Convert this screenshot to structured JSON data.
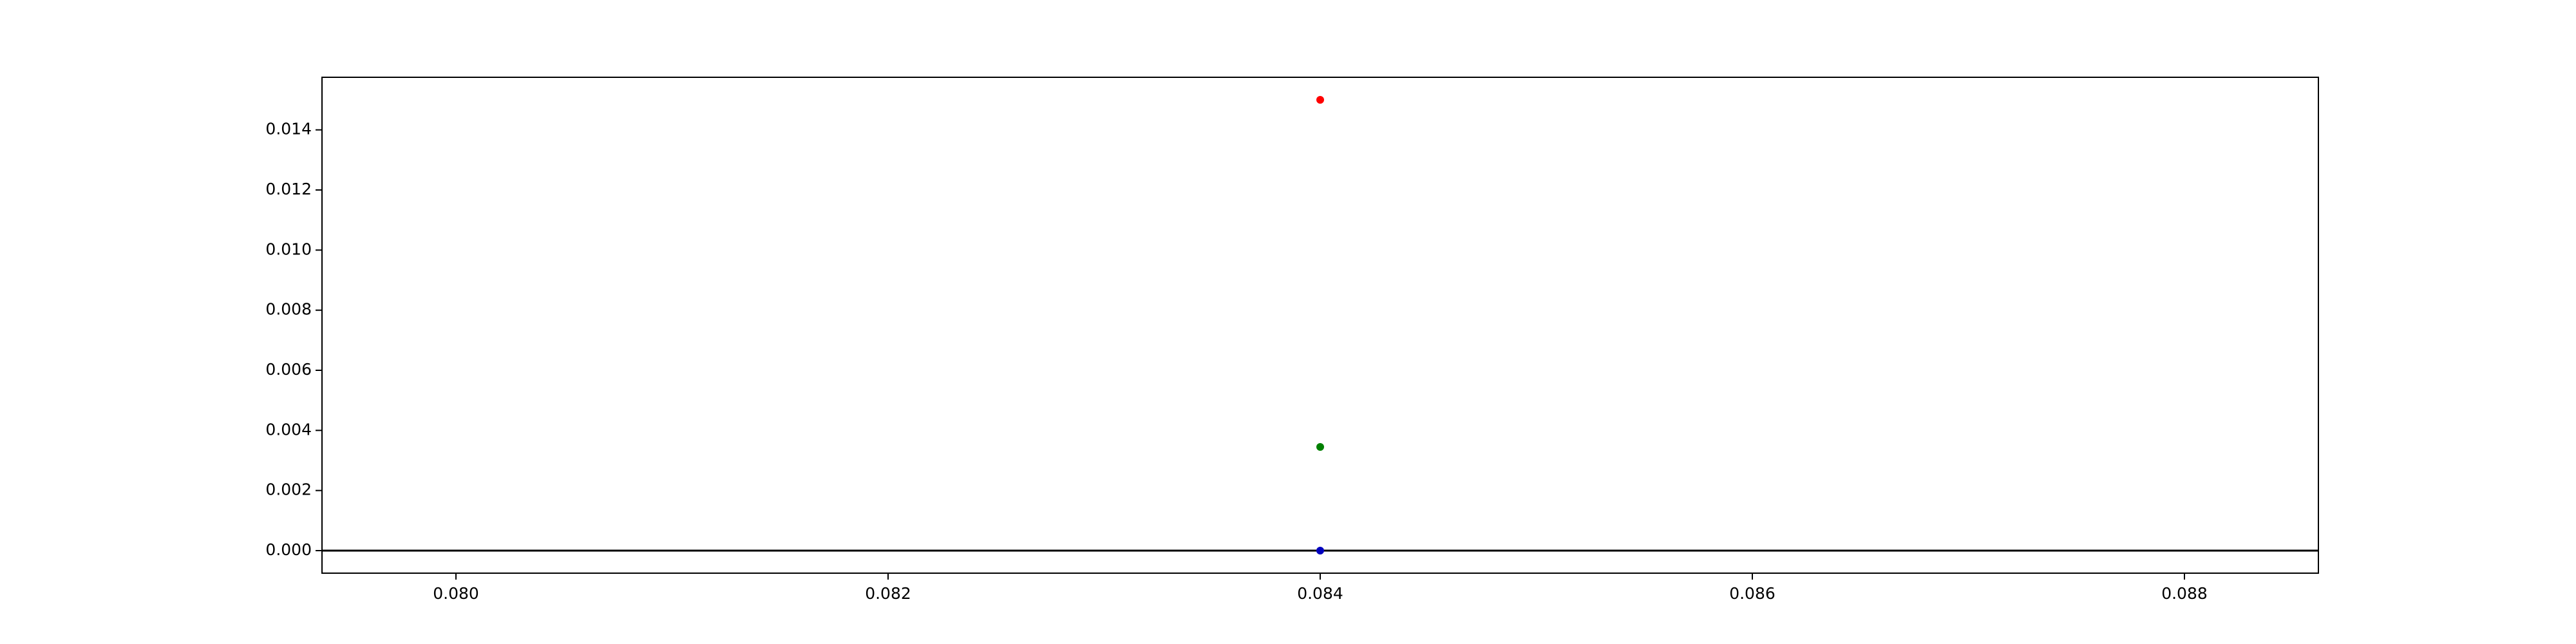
{
  "chart_data": {
    "type": "scatter",
    "title": "",
    "xlabel": "",
    "ylabel": "",
    "xlim": [
      0.07938,
      0.08862
    ],
    "ylim": [
      -0.00075,
      0.01575
    ],
    "grid": false,
    "legend": "none",
    "x_ticks": [
      0.08,
      0.082,
      0.084,
      0.086,
      0.088
    ],
    "x_tick_labels": [
      "0.080",
      "0.082",
      "0.084",
      "0.086",
      "0.088"
    ],
    "y_ticks": [
      0.0,
      0.002,
      0.004,
      0.006,
      0.008,
      0.01,
      0.012,
      0.014
    ],
    "y_tick_labels": [
      "0.000",
      "0.002",
      "0.004",
      "0.006",
      "0.008",
      "0.010",
      "0.012",
      "0.014"
    ],
    "reference_line": {
      "y": 0,
      "color": "#000000"
    },
    "points": [
      {
        "x": 0.084,
        "y": 0.015,
        "color": "#ff0000"
      },
      {
        "x": 0.084,
        "y": 0.00345,
        "color": "#008000"
      },
      {
        "x": 0.084,
        "y": 0.0,
        "color": "#0000bf"
      }
    ]
  }
}
